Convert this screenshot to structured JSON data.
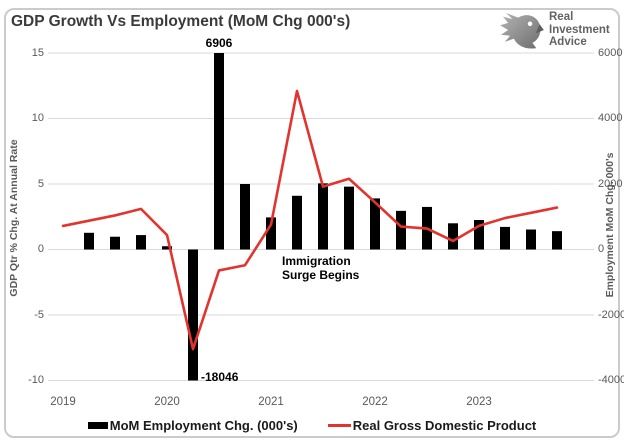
{
  "title": "GDP Growth Vs Employment (MoM Chg 000's)",
  "logo": {
    "line1": "Real",
    "line2": "Investment",
    "line3": "Advice"
  },
  "colors": {
    "bar": "#000000",
    "line": "#e2342f",
    "grid": "#d9d9d9",
    "axis_text": "#595959",
    "annotation": "#000000",
    "border": "#cbcbcb",
    "logo_gray": "#8a8a8a"
  },
  "chart_data": {
    "type": "bar",
    "subtype": "combo-bar-line-dual-axis",
    "title": "GDP Growth Vs Employment (MoM Chg 000's)",
    "x": [
      "2019 Q1",
      "2019 Q2",
      "2019 Q3",
      "2019 Q4",
      "2020 Q1",
      "2020 Q2",
      "2020 Q3",
      "2020 Q4",
      "2021 Q1",
      "2021 Q2",
      "2021 Q3",
      "2021 Q4",
      "2022 Q1",
      "2022 Q2",
      "2022 Q3",
      "2022 Q4",
      "2023 Q1",
      "2023 Q2",
      "2023 Q3",
      "2023 Q4"
    ],
    "x_tick_labels": [
      "2019",
      "2020",
      "2021",
      "2022",
      "2023"
    ],
    "x_tick_indices": [
      0,
      4,
      8,
      12,
      16
    ],
    "series": [
      {
        "name": "MoM Employment Chg. (000's)",
        "type": "bar",
        "axis": "right",
        "color": "#000000",
        "values": [
          null,
          510,
          390,
          440,
          100,
          -18046,
          6906,
          2000,
          980,
          1640,
          2020,
          1920,
          1560,
          1180,
          1300,
          800,
          900,
          690,
          610,
          560
        ]
      },
      {
        "name": "Real Gross Domestic Product",
        "type": "line",
        "axis": "left",
        "color": "#e2342f",
        "values": [
          1.8,
          2.2,
          2.6,
          3.1,
          1.1,
          -7.6,
          -1.6,
          -1.2,
          1.9,
          12.1,
          4.8,
          5.4,
          3.6,
          1.75,
          1.6,
          0.65,
          1.8,
          2.4,
          2.8,
          3.2
        ]
      }
    ],
    "left_axis": {
      "label": "GDP Qtr % Chg. At Annual Rate",
      "ticks": [
        15,
        10,
        5,
        0,
        -5,
        -10
      ],
      "range": [
        -10,
        15
      ]
    },
    "right_axis": {
      "label": "Employment MoM Chg. 000's",
      "ticks": [
        6000,
        4000,
        2000,
        0,
        -2000,
        -4000
      ],
      "range": [
        -4000,
        6000
      ]
    },
    "grid": true,
    "legend_position": "bottom",
    "annotations": [
      {
        "text": "6906",
        "anchor_quarter": "2020 Q3",
        "note": "bar clipped at axis top"
      },
      {
        "text": "-18046",
        "anchor_quarter": "2020 Q2",
        "note": "bar clipped at axis bottom"
      },
      {
        "text": "Immigration\nSurge Begins",
        "anchor": "below zero line, 2021"
      }
    ]
  }
}
